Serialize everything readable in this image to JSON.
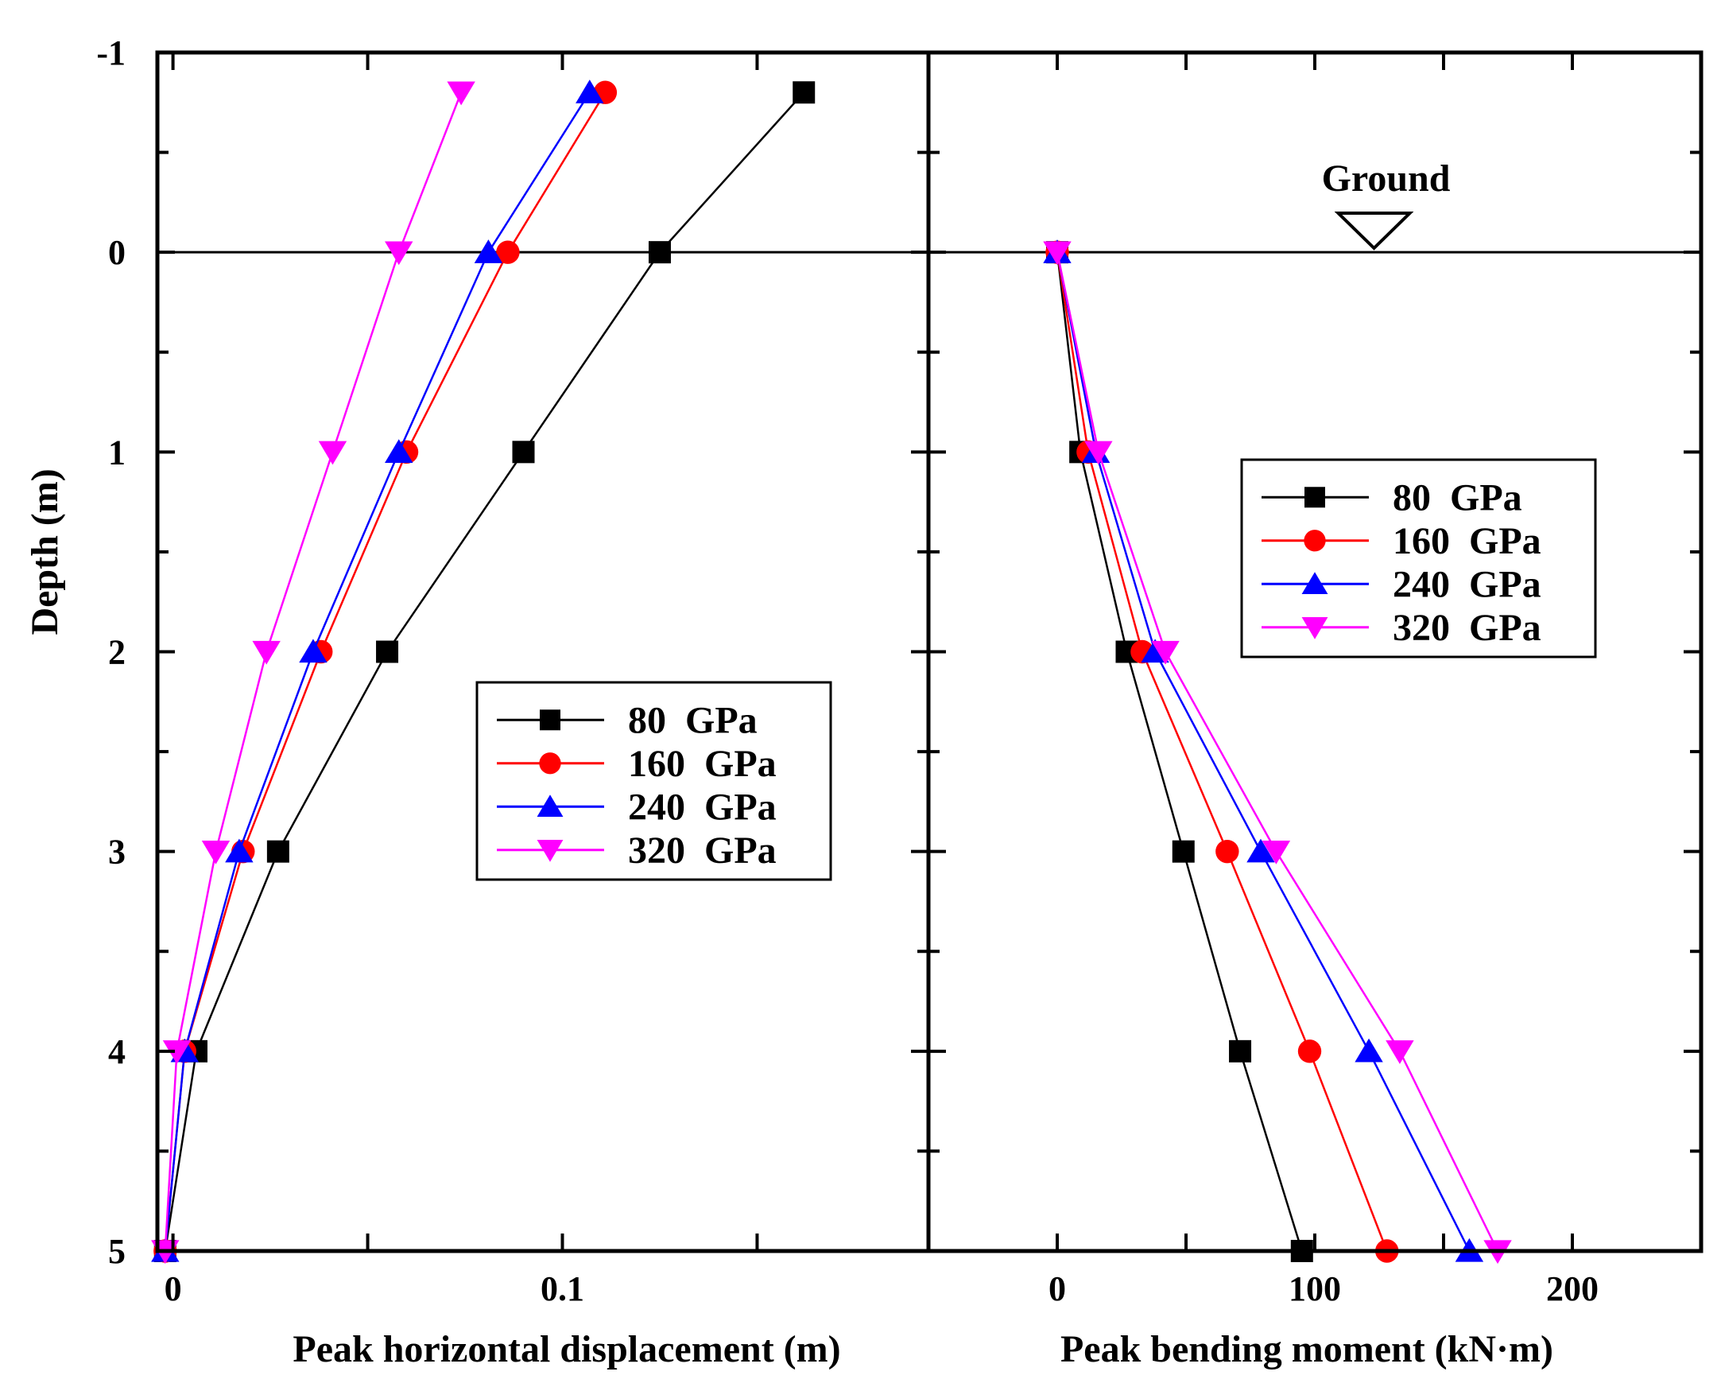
{
  "chart_data": [
    {
      "type": "line",
      "panel": "left",
      "xlabel": "Peak horizontal displacement (m)",
      "ylabel": "Depth (m)",
      "xlim": [
        -0.004,
        0.194
      ],
      "ylim": [
        5,
        -1
      ],
      "x_ticks": [
        0,
        0.05,
        0.1,
        0.15
      ],
      "x_tick_labels": [
        "0",
        "",
        "0.1",
        ""
      ],
      "y_ticks": [
        -1,
        0,
        1,
        2,
        3,
        4,
        5
      ],
      "y_tick_labels": [
        "-1",
        "0",
        "1",
        "2",
        "3",
        "4",
        "5"
      ],
      "legend_position": "center-right",
      "series": [
        {
          "name": "80  GPa",
          "color": "#000000",
          "marker": "square",
          "x": [
            0.162,
            0.125,
            0.09,
            0.055,
            0.027,
            0.006,
            -0.002
          ],
          "y": [
            -0.8,
            0,
            1,
            2,
            3,
            4,
            5
          ]
        },
        {
          "name": "160  GPa",
          "color": "#ff0000",
          "marker": "circle",
          "x": [
            0.111,
            0.086,
            0.06,
            0.038,
            0.018,
            0.003,
            -0.002
          ],
          "y": [
            -0.8,
            0,
            1,
            2,
            3,
            4,
            5
          ]
        },
        {
          "name": "240  GPa",
          "color": "#0000ff",
          "marker": "triangle-up",
          "x": [
            0.107,
            0.081,
            0.058,
            0.036,
            0.017,
            0.003,
            -0.002
          ],
          "y": [
            -0.8,
            0,
            1,
            2,
            3,
            4,
            5
          ]
        },
        {
          "name": "320  GPa",
          "color": "#ff00ff",
          "marker": "triangle-down",
          "x": [
            0.074,
            0.058,
            0.041,
            0.024,
            0.011,
            0.001,
            -0.002
          ],
          "y": [
            -0.8,
            0,
            1,
            2,
            3,
            4,
            5
          ]
        }
      ]
    },
    {
      "type": "line",
      "panel": "right",
      "xlabel": "Peak bending moment (kN·m)",
      "ylabel": "",
      "xlim": [
        -50,
        250
      ],
      "ylim": [
        5,
        -1
      ],
      "x_ticks": [
        0,
        50,
        100,
        150,
        200
      ],
      "x_tick_labels": [
        "0",
        "",
        "100",
        "",
        "200"
      ],
      "y_ticks": [
        -1,
        0,
        1,
        2,
        3,
        4,
        5
      ],
      "annotation": "Ground",
      "ground_level": 0,
      "ground_marker_x": 123,
      "legend_position": "top-right",
      "series": [
        {
          "name": "80  GPa",
          "color": "#000000",
          "marker": "square",
          "x": [
            0,
            9,
            27,
            49,
            71,
            95
          ],
          "y": [
            0,
            1,
            2,
            3,
            4,
            5
          ]
        },
        {
          "name": "160  GPa",
          "color": "#ff0000",
          "marker": "circle",
          "x": [
            0,
            12,
            33,
            66,
            98,
            128
          ],
          "y": [
            0,
            1,
            2,
            3,
            4,
            5
          ]
        },
        {
          "name": "240  GPa",
          "color": "#0000ff",
          "marker": "triangle-up",
          "x": [
            0,
            15,
            38,
            79,
            121,
            160
          ],
          "y": [
            0,
            1,
            2,
            3,
            4,
            5
          ]
        },
        {
          "name": "320  GPa",
          "color": "#ff00ff",
          "marker": "triangle-down",
          "x": [
            0,
            16,
            42,
            85,
            133,
            171
          ],
          "y": [
            0,
            1,
            2,
            3,
            4,
            5
          ]
        }
      ]
    }
  ]
}
